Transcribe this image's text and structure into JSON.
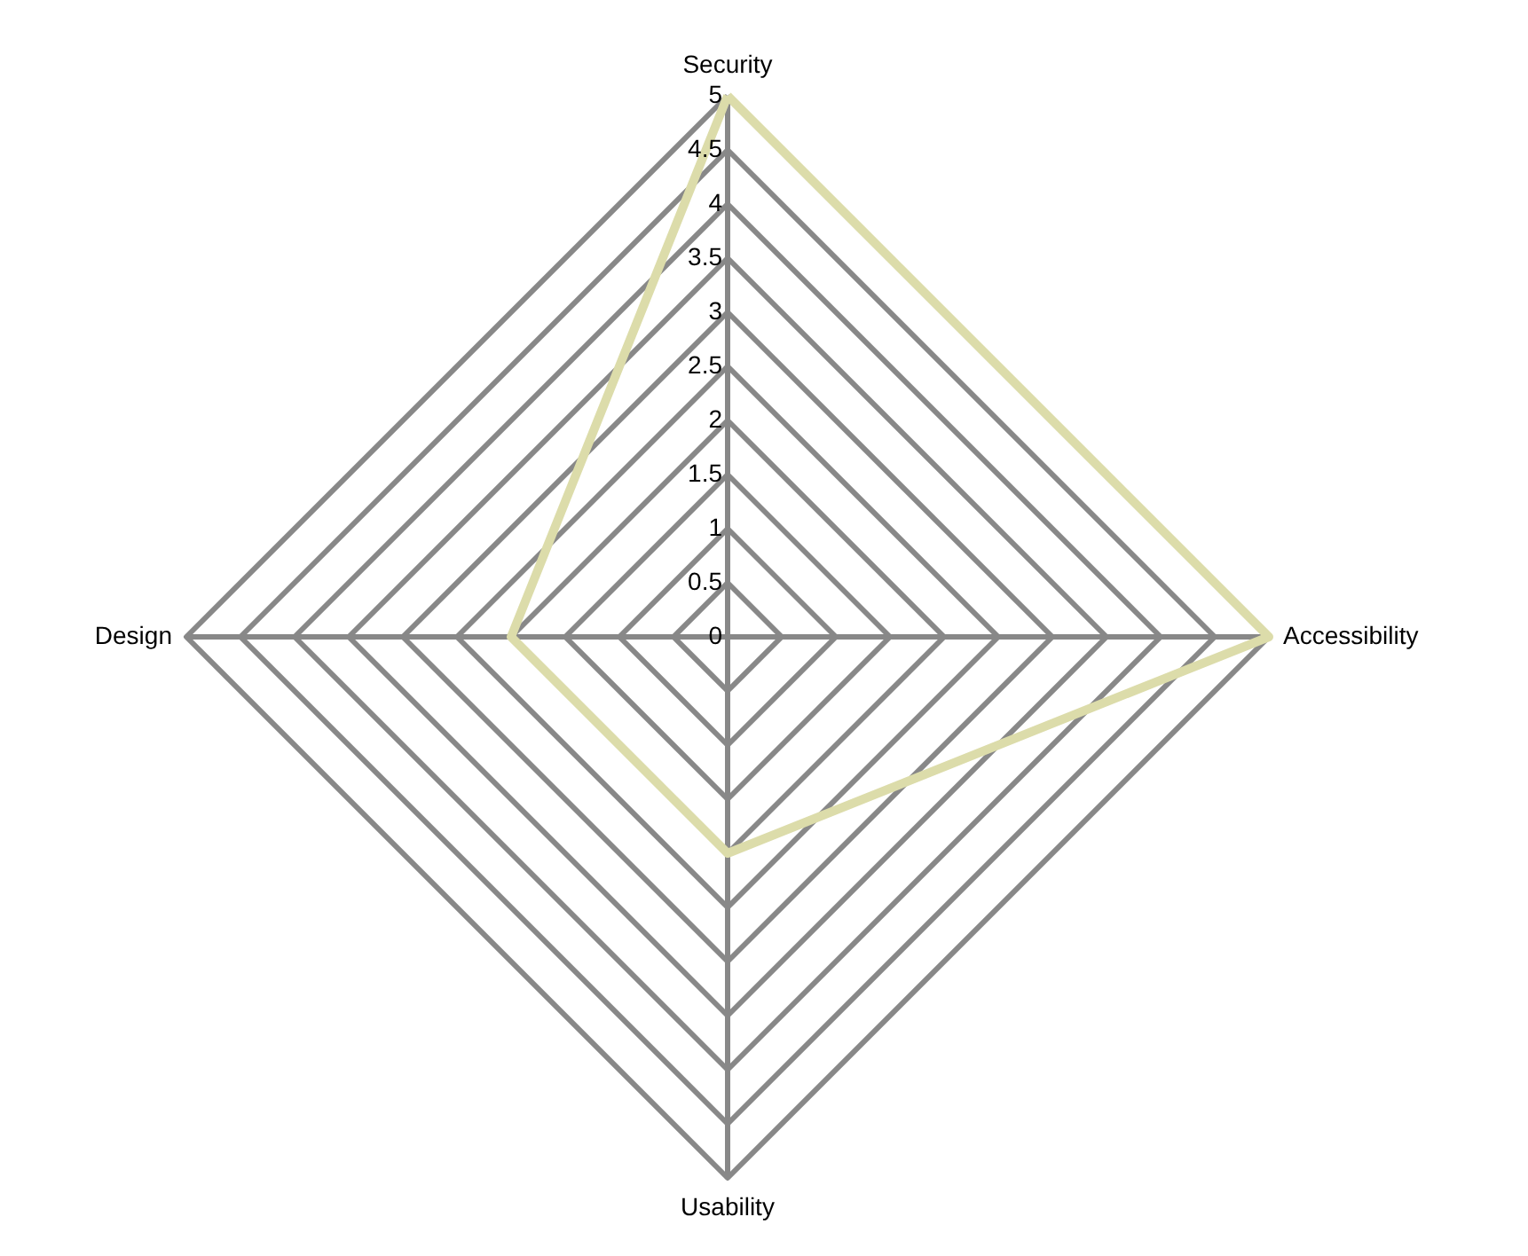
{
  "chart_data": {
    "type": "radar",
    "categories": [
      "Security",
      "Accessibility",
      "Usability",
      "Design"
    ],
    "series": [
      {
        "color": "#dcdcaa",
        "values": [
          5,
          5,
          2,
          2
        ]
      }
    ],
    "ylim": [
      0,
      5
    ],
    "yticks": [
      0,
      0.5,
      1,
      1.5,
      2,
      2.5,
      3,
      3.5,
      4,
      4.5,
      5
    ],
    "grid": true
  }
}
